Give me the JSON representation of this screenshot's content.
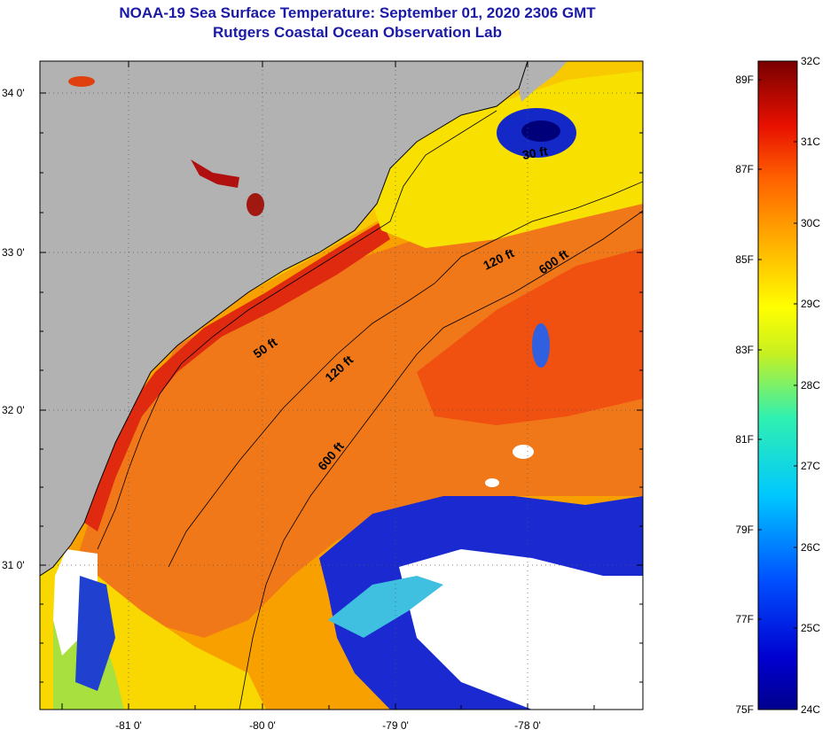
{
  "title": {
    "line1": "NOAA-19 Sea Surface Temperature:  September 01, 2020 2306 GMT",
    "line2": "Rutgers Coastal Ocean Observation Lab"
  },
  "map": {
    "lat_labels": [
      "34 0'",
      "33 0'",
      "32 0'",
      "31 0'"
    ],
    "lon_labels": [
      "-81 0'",
      "-80 0'",
      "-79 0'",
      "-78 0'"
    ],
    "contour_labels": [
      "30 ft",
      "50 ft",
      "120 ft",
      "120 ft",
      "600 ft",
      "600 ft"
    ],
    "colors": {
      "land": "#b2b2b2",
      "cloud": "#ffffff",
      "warm_ocean": "#f06010",
      "hot_ocean": "#e02010",
      "mid_ocean": "#f8a800",
      "cool_ocean": "#f8e800",
      "cold_ocean": "#1010c0",
      "coldest_ocean": "#000080"
    }
  },
  "colorbar": {
    "celsius": [
      "32C",
      "31C",
      "30C",
      "29C",
      "28C",
      "27C",
      "26C",
      "25C",
      "24C"
    ],
    "fahrenheit": [
      "89F",
      "87F",
      "85F",
      "83F",
      "81F",
      "79F",
      "77F",
      "75F"
    ],
    "range_c": [
      24,
      32
    ]
  }
}
